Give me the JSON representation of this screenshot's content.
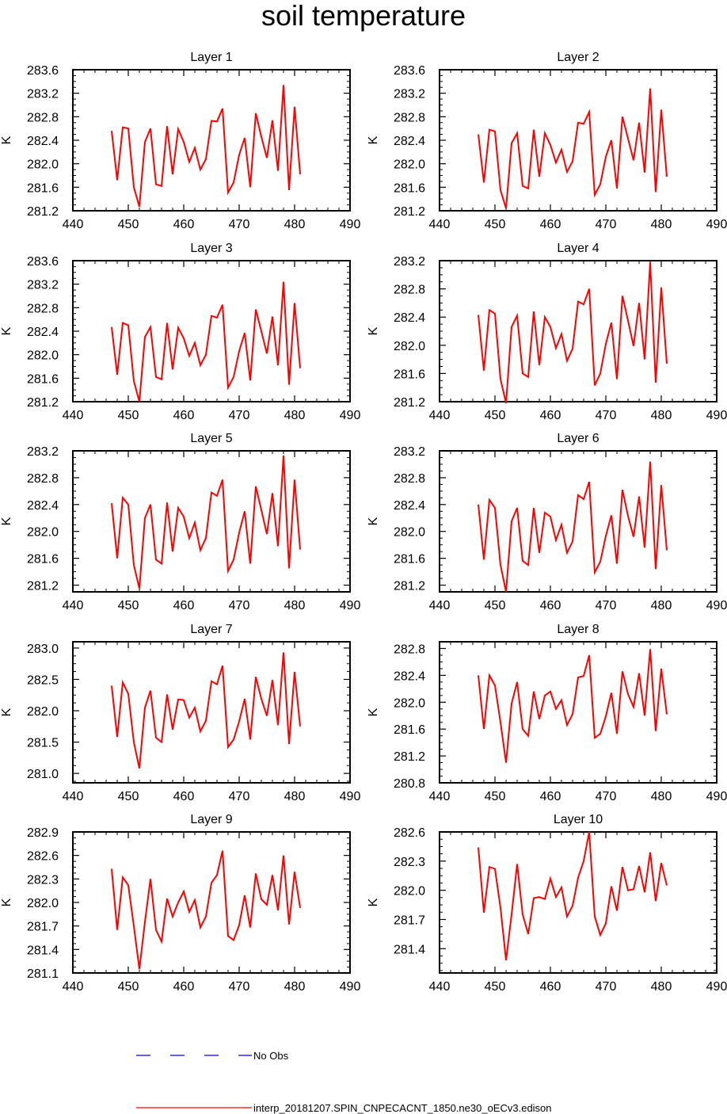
{
  "title": "soil temperature",
  "x_tick_labels": [
    "440",
    "450",
    "460",
    "470",
    "480",
    "490"
  ],
  "legend": {
    "obs_label": "No Obs",
    "model_label": "interp_20181207.SPIN_CNPECACNT_1850.ne30_oECv3.edison",
    "colors": {
      "obs": "#0000ff",
      "model": "#ff0000"
    }
  },
  "chart_data": [
    {
      "type": "line",
      "title": "Layer 1",
      "xlabel": "",
      "ylabel": "K",
      "xlim": [
        440,
        490
      ],
      "ylim": [
        281.2,
        283.6
      ],
      "yticks": [
        "281.2",
        "281.6",
        "282.0",
        "282.4",
        "282.8",
        "283.2",
        "283.6"
      ],
      "series": [
        {
          "color": "#ff0000",
          "x": [
            447,
            448,
            449,
            450,
            451,
            452,
            453,
            454,
            455,
            456,
            457,
            458,
            459,
            460,
            461,
            462,
            463,
            464,
            465,
            466,
            467,
            468,
            469,
            470,
            471,
            472,
            473,
            474,
            475,
            476,
            477,
            478,
            479,
            480,
            481
          ],
          "values": [
            282.56,
            281.72,
            282.62,
            282.6,
            281.6,
            281.27,
            282.37,
            282.6,
            281.65,
            281.62,
            282.64,
            281.82,
            282.59,
            282.37,
            282.03,
            282.27,
            281.9,
            282.08,
            282.73,
            282.72,
            282.94,
            281.51,
            281.68,
            282.15,
            282.44,
            281.6,
            282.86,
            282.46,
            282.1,
            282.74,
            281.88,
            283.34,
            281.55,
            282.97,
            281.82
          ]
        }
      ]
    },
    {
      "type": "line",
      "title": "Layer 2",
      "xlabel": "",
      "ylabel": "K",
      "xlim": [
        440,
        490
      ],
      "ylim": [
        281.2,
        283.6
      ],
      "yticks": [
        "281.2",
        "281.6",
        "282.0",
        "282.4",
        "282.8",
        "283.2",
        "283.6"
      ],
      "series": [
        {
          "color": "#ff0000",
          "x": [
            447,
            448,
            449,
            450,
            451,
            452,
            453,
            454,
            455,
            456,
            457,
            458,
            459,
            460,
            461,
            462,
            463,
            464,
            465,
            466,
            467,
            468,
            469,
            470,
            471,
            472,
            473,
            474,
            475,
            476,
            477,
            478,
            479,
            480,
            481
          ],
          "values": [
            282.5,
            281.68,
            282.58,
            282.55,
            281.55,
            281.24,
            282.35,
            282.52,
            281.62,
            281.58,
            282.58,
            281.78,
            282.52,
            282.32,
            282.02,
            282.24,
            281.86,
            282.04,
            282.7,
            282.68,
            282.88,
            281.47,
            281.65,
            282.12,
            282.4,
            281.58,
            282.8,
            282.43,
            282.06,
            282.7,
            281.85,
            283.28,
            281.52,
            282.92,
            281.78
          ]
        }
      ]
    },
    {
      "type": "line",
      "title": "Layer 3",
      "xlabel": "",
      "ylabel": "K",
      "xlim": [
        440,
        490
      ],
      "ylim": [
        281.2,
        283.6
      ],
      "yticks": [
        "281.2",
        "281.6",
        "282.0",
        "282.4",
        "282.8",
        "283.2",
        "283.6"
      ],
      "series": [
        {
          "color": "#ff0000",
          "x": [
            447,
            448,
            449,
            450,
            451,
            452,
            453,
            454,
            455,
            456,
            457,
            458,
            459,
            460,
            461,
            462,
            463,
            464,
            465,
            466,
            467,
            468,
            469,
            470,
            471,
            472,
            473,
            474,
            475,
            476,
            477,
            478,
            479,
            480,
            481
          ],
          "values": [
            282.47,
            281.66,
            282.54,
            282.5,
            281.55,
            281.2,
            282.3,
            282.47,
            281.62,
            281.58,
            282.54,
            281.75,
            282.46,
            282.28,
            281.98,
            282.2,
            281.82,
            282.0,
            282.66,
            282.63,
            282.85,
            281.44,
            281.62,
            282.06,
            282.37,
            281.56,
            282.77,
            282.4,
            282.02,
            282.65,
            281.82,
            283.24,
            281.49,
            282.88,
            281.77
          ]
        }
      ]
    },
    {
      "type": "line",
      "title": "Layer 4",
      "xlabel": "",
      "ylabel": "K",
      "xlim": [
        440,
        490
      ],
      "ylim": [
        281.2,
        283.2
      ],
      "yticks": [
        "281.2",
        "281.6",
        "282.0",
        "282.4",
        "282.8",
        "283.2"
      ],
      "series": [
        {
          "color": "#ff0000",
          "x": [
            447,
            448,
            449,
            450,
            451,
            452,
            453,
            454,
            455,
            456,
            457,
            458,
            459,
            460,
            461,
            462,
            463,
            464,
            465,
            466,
            467,
            468,
            469,
            470,
            471,
            472,
            473,
            474,
            475,
            476,
            477,
            478,
            479,
            480,
            481
          ],
          "values": [
            282.43,
            281.64,
            282.5,
            282.45,
            281.52,
            281.18,
            282.26,
            282.42,
            281.6,
            281.55,
            282.48,
            281.72,
            282.4,
            282.26,
            281.96,
            282.16,
            281.78,
            281.95,
            282.62,
            282.58,
            282.8,
            281.43,
            281.6,
            282.02,
            282.32,
            281.52,
            282.7,
            282.35,
            281.99,
            282.6,
            281.8,
            283.18,
            281.47,
            282.82,
            281.74
          ]
        }
      ]
    },
    {
      "type": "line",
      "title": "Layer 5",
      "xlabel": "",
      "ylabel": "K",
      "xlim": [
        440,
        490
      ],
      "ylim": [
        281.1,
        283.2
      ],
      "yticks": [
        "281.2",
        "281.6",
        "282.0",
        "282.4",
        "282.8",
        "283.2"
      ],
      "series": [
        {
          "color": "#ff0000",
          "x": [
            447,
            448,
            449,
            450,
            451,
            452,
            453,
            454,
            455,
            456,
            457,
            458,
            459,
            460,
            461,
            462,
            463,
            464,
            465,
            466,
            467,
            468,
            469,
            470,
            471,
            472,
            473,
            474,
            475,
            476,
            477,
            478,
            479,
            480,
            481
          ],
          "values": [
            282.42,
            281.6,
            282.5,
            282.4,
            281.5,
            281.15,
            282.2,
            282.4,
            281.58,
            281.52,
            282.43,
            281.7,
            282.35,
            282.22,
            281.9,
            282.13,
            281.72,
            281.9,
            282.58,
            282.53,
            282.77,
            281.41,
            281.58,
            281.98,
            282.3,
            281.52,
            282.67,
            282.32,
            281.96,
            282.57,
            281.78,
            283.13,
            281.45,
            282.77,
            281.73
          ]
        }
      ]
    },
    {
      "type": "line",
      "title": "Layer 6",
      "xlabel": "",
      "ylabel": "K",
      "xlim": [
        440,
        490
      ],
      "ylim": [
        281.1,
        283.2
      ],
      "yticks": [
        "281.2",
        "281.6",
        "282.0",
        "282.4",
        "282.8",
        "283.2"
      ],
      "series": [
        {
          "color": "#ff0000",
          "x": [
            447,
            448,
            449,
            450,
            451,
            452,
            453,
            454,
            455,
            456,
            457,
            458,
            459,
            460,
            461,
            462,
            463,
            464,
            465,
            466,
            467,
            468,
            469,
            470,
            471,
            472,
            473,
            474,
            475,
            476,
            477,
            478,
            479,
            480,
            481
          ],
          "values": [
            282.4,
            281.58,
            282.47,
            282.35,
            281.5,
            281.1,
            282.15,
            282.35,
            281.56,
            281.5,
            282.35,
            281.68,
            282.28,
            282.22,
            281.87,
            282.1,
            281.68,
            281.85,
            282.54,
            282.48,
            282.74,
            281.39,
            281.55,
            281.93,
            282.24,
            281.52,
            282.62,
            282.23,
            281.92,
            282.52,
            281.76,
            283.04,
            281.44,
            282.69,
            281.72
          ]
        }
      ]
    },
    {
      "type": "line",
      "title": "Layer 7",
      "xlabel": "",
      "ylabel": "K",
      "xlim": [
        440,
        490
      ],
      "ylim": [
        280.85,
        283.1
      ],
      "yticks": [
        "281.0",
        "281.5",
        "282.0",
        "282.5",
        "283.0"
      ],
      "series": [
        {
          "color": "#ff0000",
          "x": [
            447,
            448,
            449,
            450,
            451,
            452,
            453,
            454,
            455,
            456,
            457,
            458,
            459,
            460,
            461,
            462,
            463,
            464,
            465,
            466,
            467,
            468,
            469,
            470,
            471,
            472,
            473,
            474,
            475,
            476,
            477,
            478,
            479,
            480,
            481
          ],
          "values": [
            282.4,
            281.58,
            282.45,
            282.27,
            281.5,
            281.08,
            282.05,
            282.32,
            281.57,
            281.5,
            282.26,
            281.7,
            282.18,
            282.17,
            281.89,
            282.05,
            281.67,
            281.84,
            282.47,
            282.42,
            282.72,
            281.42,
            281.54,
            281.83,
            282.19,
            281.54,
            282.54,
            282.19,
            281.92,
            282.49,
            281.77,
            282.93,
            281.47,
            282.62,
            281.75
          ]
        }
      ]
    },
    {
      "type": "line",
      "title": "Layer 8",
      "xlabel": "",
      "ylabel": "K",
      "xlim": [
        440,
        490
      ],
      "ylim": [
        280.8,
        282.9
      ],
      "yticks": [
        "280.8",
        "281.2",
        "281.6",
        "282.0",
        "282.4",
        "282.8"
      ],
      "series": [
        {
          "color": "#ff0000",
          "x": [
            447,
            448,
            449,
            450,
            451,
            452,
            453,
            454,
            455,
            456,
            457,
            458,
            459,
            460,
            461,
            462,
            463,
            464,
            465,
            466,
            467,
            468,
            469,
            470,
            471,
            472,
            473,
            474,
            475,
            476,
            477,
            478,
            479,
            480,
            481
          ],
          "values": [
            282.4,
            281.6,
            282.4,
            282.25,
            281.7,
            281.1,
            281.98,
            282.3,
            281.6,
            281.5,
            282.16,
            281.75,
            282.1,
            282.16,
            281.9,
            282.03,
            281.66,
            281.82,
            282.37,
            282.39,
            282.7,
            281.47,
            281.53,
            281.79,
            282.14,
            281.53,
            282.46,
            282.12,
            281.93,
            282.43,
            281.8,
            282.79,
            281.57,
            282.5,
            281.82
          ]
        }
      ]
    },
    {
      "type": "line",
      "title": "Layer 9",
      "xlabel": "",
      "ylabel": "K",
      "xlim": [
        440,
        490
      ],
      "ylim": [
        281.1,
        282.9
      ],
      "yticks": [
        "281.1",
        "281.4",
        "281.7",
        "282.0",
        "282.3",
        "282.6",
        "282.9"
      ],
      "series": [
        {
          "color": "#ff0000",
          "x": [
            447,
            448,
            449,
            450,
            451,
            452,
            453,
            454,
            455,
            456,
            457,
            458,
            459,
            460,
            461,
            462,
            463,
            464,
            465,
            466,
            467,
            468,
            469,
            470,
            471,
            472,
            473,
            474,
            475,
            476,
            477,
            478,
            479,
            480,
            481
          ],
          "values": [
            282.43,
            281.65,
            282.32,
            282.22,
            281.7,
            281.15,
            281.75,
            282.3,
            281.65,
            281.5,
            282.05,
            281.82,
            282.0,
            282.14,
            281.88,
            282.03,
            281.68,
            281.82,
            282.25,
            282.35,
            282.66,
            281.57,
            281.52,
            281.71,
            282.09,
            281.68,
            282.37,
            282.04,
            281.97,
            282.35,
            281.9,
            282.6,
            281.72,
            282.39,
            281.93
          ]
        }
      ]
    },
    {
      "type": "line",
      "title": "Layer 10",
      "xlabel": "",
      "ylabel": "K",
      "xlim": [
        440,
        490
      ],
      "ylim": [
        281.15,
        282.6
      ],
      "yticks": [
        "281.4",
        "281.7",
        "282.0",
        "282.3",
        "282.6"
      ],
      "series": [
        {
          "color": "#ff0000",
          "x": [
            447,
            448,
            449,
            450,
            451,
            452,
            453,
            454,
            455,
            456,
            457,
            458,
            459,
            460,
            461,
            462,
            463,
            464,
            465,
            466,
            467,
            468,
            469,
            470,
            471,
            472,
            473,
            474,
            475,
            476,
            477,
            478,
            479,
            480,
            481
          ],
          "values": [
            282.44,
            281.77,
            282.24,
            282.22,
            281.82,
            281.28,
            281.75,
            282.27,
            281.75,
            281.55,
            281.92,
            281.93,
            281.91,
            282.12,
            281.93,
            282.03,
            281.73,
            281.84,
            282.13,
            282.3,
            282.6,
            281.73,
            281.54,
            281.66,
            282.04,
            281.79,
            282.24,
            282.0,
            282.01,
            282.25,
            281.98,
            282.39,
            281.89,
            282.28,
            282.05
          ]
        }
      ]
    }
  ]
}
